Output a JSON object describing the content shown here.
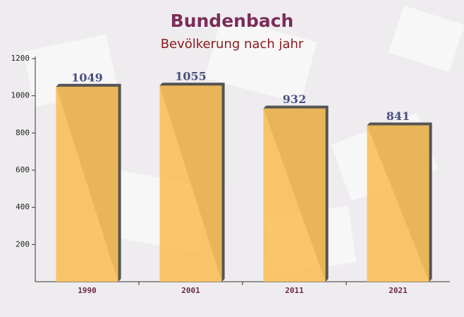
{
  "chart_data": {
    "type": "bar",
    "title": "Bundenbach",
    "subtitle": "Bevölkerung nach jahr",
    "categories": [
      "1990",
      "2001",
      "2011",
      "2021"
    ],
    "values": [
      1049,
      1055,
      932,
      841
    ],
    "color": "#f9c05a",
    "ylim": [
      0,
      1200
    ],
    "yticks": [
      200,
      400,
      600,
      800,
      1000,
      1200
    ]
  }
}
